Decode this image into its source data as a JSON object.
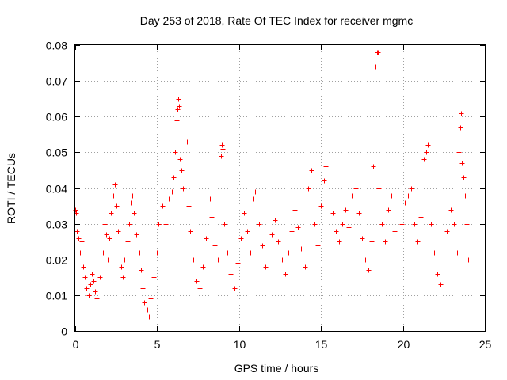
{
  "chart_data": {
    "type": "scatter",
    "title": "Day 253 of 2018, Rate Of TEC Index for receiver mgmc",
    "xlabel": "GPS time / hours",
    "ylabel": "ROTI / TECUs",
    "xlim": [
      0,
      25
    ],
    "ylim": [
      0,
      0.08
    ],
    "xticks": [
      0,
      5,
      10,
      15,
      20,
      25
    ],
    "yticks": [
      0,
      0.01,
      0.02,
      0.03,
      0.04,
      0.05,
      0.06,
      0.07,
      0.08
    ],
    "ytick_labels": [
      "0",
      "0.01",
      "0.02",
      "0.03",
      "0.04",
      "0.05",
      "0.06",
      "0.07",
      "0.08"
    ],
    "xtick_labels": [
      "0",
      "5",
      "10",
      "15",
      "20",
      "25"
    ],
    "grid": true,
    "marker": "+",
    "color": "#ff0000",
    "series": [
      {
        "name": "ROTI",
        "points": [
          [
            0.0,
            0.034
          ],
          [
            0.05,
            0.033
          ],
          [
            0.1,
            0.028
          ],
          [
            0.2,
            0.026
          ],
          [
            0.3,
            0.022
          ],
          [
            0.4,
            0.025
          ],
          [
            0.5,
            0.018
          ],
          [
            0.6,
            0.015
          ],
          [
            0.7,
            0.012
          ],
          [
            0.8,
            0.01
          ],
          [
            0.9,
            0.013
          ],
          [
            1.0,
            0.016
          ],
          [
            1.1,
            0.014
          ],
          [
            1.2,
            0.011
          ],
          [
            1.3,
            0.009
          ],
          [
            1.5,
            0.015
          ],
          [
            1.7,
            0.022
          ],
          [
            1.8,
            0.03
          ],
          [
            1.9,
            0.027
          ],
          [
            2.0,
            0.02
          ],
          [
            2.1,
            0.026
          ],
          [
            2.2,
            0.033
          ],
          [
            2.3,
            0.038
          ],
          [
            2.4,
            0.041
          ],
          [
            2.5,
            0.035
          ],
          [
            2.6,
            0.028
          ],
          [
            2.7,
            0.022
          ],
          [
            2.8,
            0.018
          ],
          [
            2.9,
            0.015
          ],
          [
            3.0,
            0.02
          ],
          [
            3.2,
            0.025
          ],
          [
            3.3,
            0.03
          ],
          [
            3.4,
            0.036
          ],
          [
            3.5,
            0.038
          ],
          [
            3.6,
            0.033
          ],
          [
            3.7,
            0.027
          ],
          [
            3.9,
            0.022
          ],
          [
            4.0,
            0.017
          ],
          [
            4.1,
            0.012
          ],
          [
            4.2,
            0.008
          ],
          [
            4.4,
            0.006
          ],
          [
            4.5,
            0.004
          ],
          [
            4.6,
            0.009
          ],
          [
            4.8,
            0.015
          ],
          [
            5.0,
            0.022
          ],
          [
            5.1,
            0.03
          ],
          [
            5.3,
            0.035
          ],
          [
            5.5,
            0.03
          ],
          [
            5.7,
            0.037
          ],
          [
            5.9,
            0.039
          ],
          [
            6.0,
            0.043
          ],
          [
            6.1,
            0.05
          ],
          [
            6.2,
            0.059
          ],
          [
            6.25,
            0.062
          ],
          [
            6.3,
            0.065
          ],
          [
            6.35,
            0.063
          ],
          [
            6.4,
            0.048
          ],
          [
            6.5,
            0.045
          ],
          [
            6.6,
            0.04
          ],
          [
            6.8,
            0.053
          ],
          [
            6.9,
            0.035
          ],
          [
            7.0,
            0.028
          ],
          [
            7.2,
            0.02
          ],
          [
            7.4,
            0.014
          ],
          [
            7.6,
            0.012
          ],
          [
            7.8,
            0.018
          ],
          [
            8.0,
            0.026
          ],
          [
            8.2,
            0.037
          ],
          [
            8.3,
            0.032
          ],
          [
            8.5,
            0.024
          ],
          [
            8.7,
            0.02
          ],
          [
            8.9,
            0.049
          ],
          [
            8.95,
            0.052
          ],
          [
            9.0,
            0.051
          ],
          [
            9.1,
            0.03
          ],
          [
            9.3,
            0.022
          ],
          [
            9.5,
            0.016
          ],
          [
            9.7,
            0.012
          ],
          [
            9.9,
            0.019
          ],
          [
            10.1,
            0.026
          ],
          [
            10.3,
            0.033
          ],
          [
            10.5,
            0.028
          ],
          [
            10.7,
            0.022
          ],
          [
            10.9,
            0.037
          ],
          [
            11.0,
            0.039
          ],
          [
            11.2,
            0.03
          ],
          [
            11.4,
            0.024
          ],
          [
            11.6,
            0.018
          ],
          [
            11.8,
            0.022
          ],
          [
            12.0,
            0.027
          ],
          [
            12.2,
            0.031
          ],
          [
            12.4,
            0.025
          ],
          [
            12.6,
            0.02
          ],
          [
            12.8,
            0.016
          ],
          [
            13.0,
            0.022
          ],
          [
            13.2,
            0.028
          ],
          [
            13.4,
            0.034
          ],
          [
            13.6,
            0.029
          ],
          [
            13.8,
            0.023
          ],
          [
            14.0,
            0.018
          ],
          [
            14.2,
            0.04
          ],
          [
            14.4,
            0.045
          ],
          [
            14.6,
            0.03
          ],
          [
            14.8,
            0.024
          ],
          [
            15.0,
            0.035
          ],
          [
            15.2,
            0.042
          ],
          [
            15.3,
            0.046
          ],
          [
            15.5,
            0.038
          ],
          [
            15.7,
            0.033
          ],
          [
            15.9,
            0.028
          ],
          [
            16.1,
            0.025
          ],
          [
            16.3,
            0.03
          ],
          [
            16.5,
            0.034
          ],
          [
            16.7,
            0.029
          ],
          [
            16.9,
            0.038
          ],
          [
            17.1,
            0.04
          ],
          [
            17.3,
            0.033
          ],
          [
            17.5,
            0.026
          ],
          [
            17.7,
            0.02
          ],
          [
            17.9,
            0.017
          ],
          [
            18.1,
            0.025
          ],
          [
            18.2,
            0.046
          ],
          [
            18.3,
            0.072
          ],
          [
            18.35,
            0.074
          ],
          [
            18.4,
            0.078
          ],
          [
            18.45,
            0.078
          ],
          [
            18.5,
            0.04
          ],
          [
            18.7,
            0.03
          ],
          [
            18.9,
            0.025
          ],
          [
            19.1,
            0.034
          ],
          [
            19.3,
            0.038
          ],
          [
            19.5,
            0.028
          ],
          [
            19.7,
            0.022
          ],
          [
            19.9,
            0.03
          ],
          [
            20.1,
            0.036
          ],
          [
            20.3,
            0.038
          ],
          [
            20.5,
            0.04
          ],
          [
            20.7,
            0.03
          ],
          [
            20.9,
            0.025
          ],
          [
            21.1,
            0.032
          ],
          [
            21.3,
            0.048
          ],
          [
            21.4,
            0.05
          ],
          [
            21.5,
            0.052
          ],
          [
            21.7,
            0.03
          ],
          [
            21.9,
            0.022
          ],
          [
            22.1,
            0.016
          ],
          [
            22.3,
            0.013
          ],
          [
            22.5,
            0.02
          ],
          [
            22.7,
            0.028
          ],
          [
            22.9,
            0.034
          ],
          [
            23.1,
            0.03
          ],
          [
            23.3,
            0.022
          ],
          [
            23.4,
            0.05
          ],
          [
            23.5,
            0.057
          ],
          [
            23.55,
            0.061
          ],
          [
            23.6,
            0.047
          ],
          [
            23.7,
            0.043
          ],
          [
            23.8,
            0.038
          ],
          [
            23.9,
            0.03
          ],
          [
            24.0,
            0.02
          ]
        ]
      }
    ]
  }
}
